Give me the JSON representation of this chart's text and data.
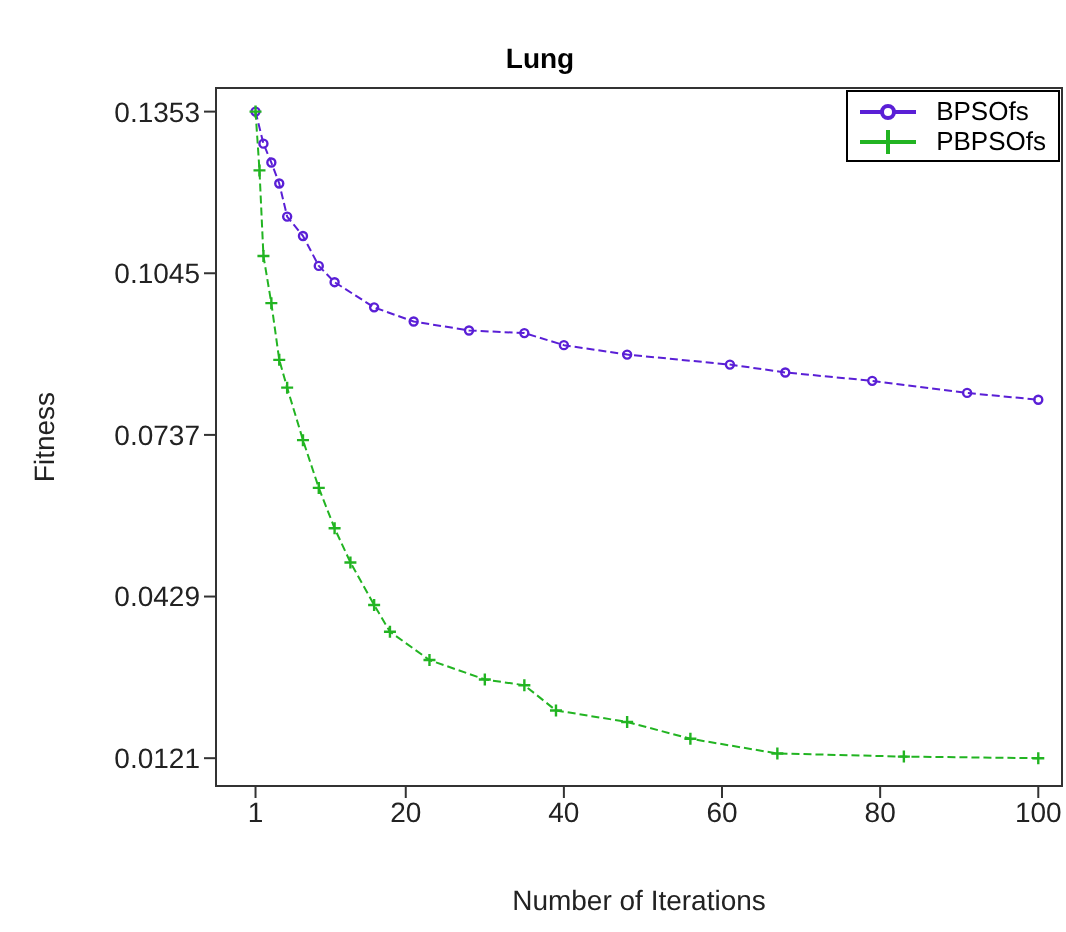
{
  "chart_data": {
    "type": "line",
    "title": "Lung",
    "xlabel": "Number of Iterations",
    "ylabel": "Fitness",
    "xlim": [
      -4,
      103
    ],
    "xticks": [
      1,
      20,
      40,
      60,
      80,
      100
    ],
    "ylim": [
      0.0068,
      0.1398
    ],
    "yticks": [
      0.1353,
      0.1045,
      0.0737,
      0.0429,
      0.0121
    ],
    "grid": false,
    "legend": "top right",
    "line_style": "dashed",
    "series": [
      {
        "name": "BPSOfs",
        "color": "#5a1fd6",
        "marker": "circle",
        "x": [
          1,
          2,
          3,
          4,
          5,
          7,
          9,
          11,
          16,
          21,
          28,
          35,
          40,
          48,
          61,
          68,
          79,
          91,
          100
        ],
        "values": [
          0.1353,
          0.1292,
          0.1256,
          0.1216,
          0.1153,
          0.1116,
          0.1059,
          0.1028,
          0.098,
          0.0953,
          0.0936,
          0.0931,
          0.0908,
          0.089,
          0.0871,
          0.0856,
          0.084,
          0.0817,
          0.0804
        ]
      },
      {
        "name": "PBPSOfs",
        "color": "#22b422",
        "marker": "cross",
        "x": [
          1,
          1.5,
          2,
          3,
          4,
          5,
          7,
          9,
          11,
          13,
          16,
          18,
          23,
          30,
          35,
          39,
          48,
          56,
          67,
          83,
          100
        ],
        "values": [
          0.1353,
          0.1241,
          0.1078,
          0.0988,
          0.088,
          0.0827,
          0.0727,
          0.0636,
          0.0559,
          0.0494,
          0.0413,
          0.0362,
          0.0308,
          0.0271,
          0.026,
          0.0212,
          0.019,
          0.0158,
          0.013,
          0.0124,
          0.0121
        ]
      }
    ]
  }
}
